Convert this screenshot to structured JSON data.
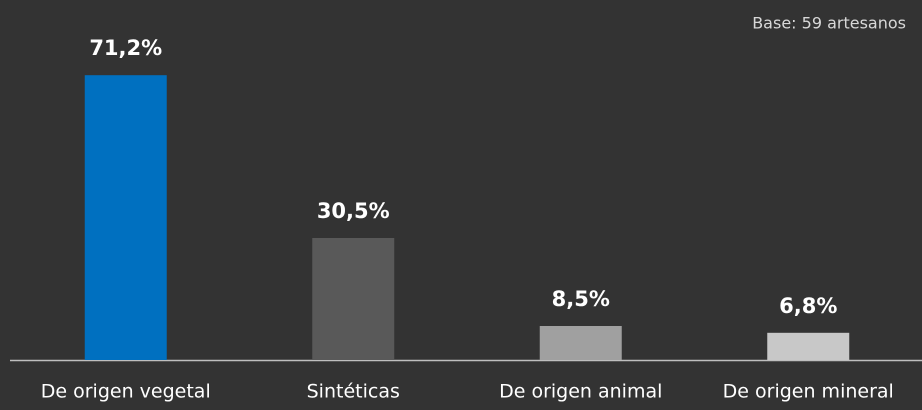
{
  "chart_data": {
    "type": "bar",
    "annotation": "Base: 59 artesanos",
    "categories": [
      "De origen vegetal",
      "Sintéticas",
      "De origen animal",
      "De origen mineral"
    ],
    "values": [
      71.2,
      30.5,
      8.5,
      6.8
    ],
    "value_labels": [
      "71,2%",
      "30,5%",
      "8,5%",
      "6,8%"
    ],
    "colors": [
      "#0070c0",
      "#595959",
      "#a0a0a0",
      "#c8c8c8"
    ],
    "ylim": [
      0,
      80
    ]
  }
}
